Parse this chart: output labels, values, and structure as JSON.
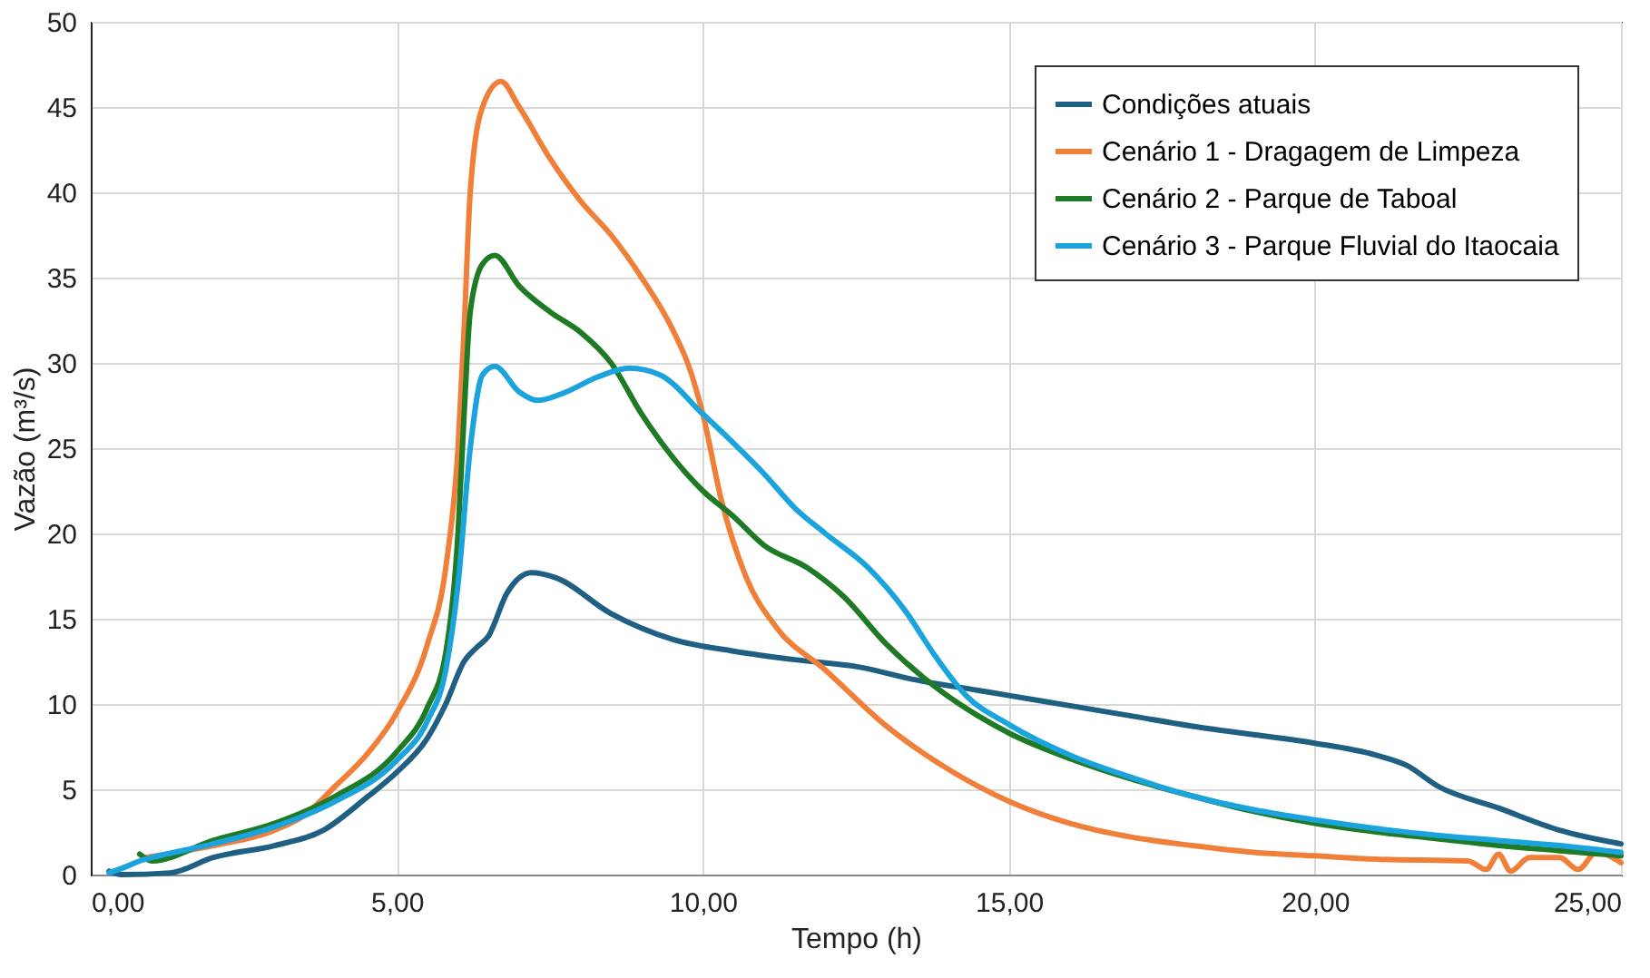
{
  "chart_data": {
    "type": "line",
    "xlabel": "Tempo (h)",
    "ylabel": "Vazão (m³/s)",
    "xlim": [
      0,
      25
    ],
    "ylim": [
      0,
      50
    ],
    "xticks": [
      {
        "value": 0,
        "label": "0,00"
      },
      {
        "value": 5,
        "label": "5,00"
      },
      {
        "value": 10,
        "label": "10,00"
      },
      {
        "value": 15,
        "label": "15,00"
      },
      {
        "value": 20,
        "label": "20,00"
      },
      {
        "value": 25,
        "label": "25,00"
      }
    ],
    "yticks": [
      0,
      5,
      10,
      15,
      20,
      25,
      30,
      35,
      40,
      45,
      50
    ],
    "grid": true,
    "legend": "top right",
    "marker": "none",
    "line_style": "solid",
    "series": [
      {
        "name": "Condições atuais",
        "color": "#1f5f82",
        "x": [
          0.3,
          0.5,
          1.3,
          2,
          3,
          3.8,
          4.5,
          5,
          5.5,
          5.8,
          6.1,
          6.3,
          6.5,
          6.8,
          7.2,
          7.6,
          8.5,
          9.5,
          10.5,
          11.5,
          12.5,
          13.5,
          14.5,
          15,
          16,
          17,
          18,
          19,
          20,
          21,
          21.5,
          22,
          23,
          24,
          25
        ],
        "values": [
          0.2,
          0,
          0.1,
          1,
          1.7,
          2.6,
          4.5,
          6,
          8,
          10,
          12.5,
          13.3,
          14,
          16.5,
          17.7,
          17.4,
          15.3,
          13.8,
          13.1,
          12.6,
          12.2,
          11.4,
          10.8,
          10.5,
          9.9,
          9.3,
          8.7,
          8.2,
          7.7,
          7.0,
          6.4,
          5.2,
          3.9,
          2.6,
          1.8
        ]
      },
      {
        "name": "Cenário 1 - Dragagem de Limpeza",
        "color": "#f07f3a",
        "x": [
          0.9,
          2,
          3,
          3.5,
          4,
          4.5,
          5,
          5.5,
          5.8,
          6.0,
          6.1,
          6.2,
          6.4,
          6.7,
          7,
          7.5,
          8,
          8.5,
          9,
          9.5,
          9.8,
          10,
          10.3,
          10.7,
          11.2,
          12,
          13,
          14,
          15,
          16,
          17,
          18,
          19,
          20,
          21,
          22.5,
          22.8,
          23,
          23.2,
          23.5,
          24,
          24.3,
          24.6,
          25
        ],
        "values": [
          1.0,
          1.7,
          2.6,
          3.5,
          5.2,
          7,
          9.5,
          13.5,
          18,
          25,
          32,
          40,
          45,
          46.5,
          45,
          42,
          39.5,
          37.5,
          35,
          32,
          29.5,
          27,
          22,
          17.5,
          14.5,
          12,
          8.7,
          6.2,
          4.3,
          3.0,
          2.2,
          1.7,
          1.3,
          1.1,
          0.9,
          0.8,
          0.3,
          1.2,
          0.2,
          1,
          1,
          0.3,
          1.3,
          0.7
        ]
      },
      {
        "name": "Cenário 2 - Parque de Taboal",
        "color": "#1e7a24",
        "x": [
          0.8,
          1,
          2,
          3,
          4,
          5,
          5.5,
          5.8,
          6.0,
          6.1,
          6.2,
          6.4,
          6.6,
          7,
          7.5,
          8,
          8.5,
          9,
          9.5,
          10,
          10.5,
          11,
          11.7,
          12.3,
          13,
          13.8,
          14.5,
          15,
          16,
          17,
          18,
          19,
          20,
          21,
          22,
          23,
          24,
          25
        ],
        "values": [
          1.2,
          0.8,
          2.0,
          3.0,
          4.6,
          7.2,
          9.8,
          13,
          20,
          27,
          33,
          35.8,
          36.3,
          34.5,
          33,
          31.8,
          30,
          27,
          24.5,
          22.5,
          21,
          19.3,
          18,
          16.3,
          13.5,
          11,
          9.3,
          8.3,
          6.8,
          5.6,
          4.6,
          3.7,
          3.0,
          2.5,
          2.1,
          1.7,
          1.4,
          1.1
        ]
      },
      {
        "name": "Cenário 3 - Parque Fluvial do Itaocaia",
        "color": "#1aa3dc",
        "x": [
          0.3,
          0.6,
          0.8,
          1,
          2,
          3,
          4,
          5,
          5.5,
          5.8,
          6.0,
          6.2,
          6.4,
          6.6,
          7,
          7.3,
          7.7,
          8.3,
          8.8,
          9.3,
          10,
          10.5,
          11,
          11.5,
          12,
          12.7,
          13.3,
          13.8,
          14.3,
          15,
          16,
          17,
          18,
          19,
          20,
          21,
          22,
          23,
          24,
          25
        ],
        "values": [
          0.1,
          0.5,
          0.8,
          1.0,
          1.8,
          2.8,
          4.3,
          6.7,
          9,
          12,
          17,
          25,
          29.3,
          29.8,
          28.3,
          27.8,
          28.2,
          29.2,
          29.7,
          29.3,
          27,
          25.3,
          23.5,
          21.5,
          20,
          18,
          15.5,
          12.8,
          10.5,
          8.8,
          7.0,
          5.7,
          4.6,
          3.8,
          3.2,
          2.7,
          2.3,
          2.0,
          1.7,
          1.3
        ]
      }
    ]
  }
}
